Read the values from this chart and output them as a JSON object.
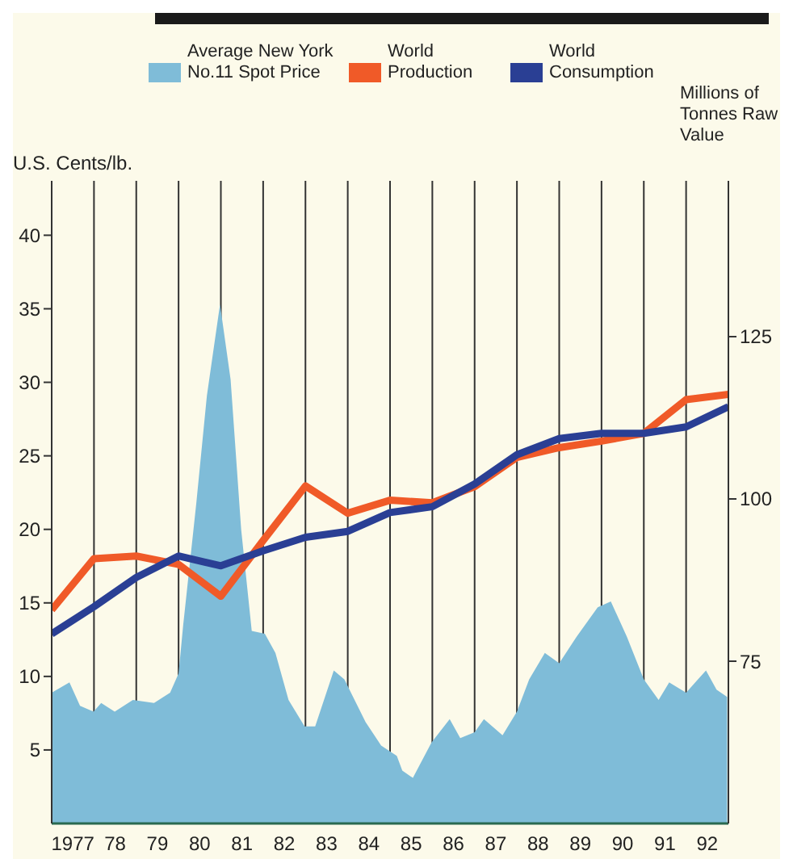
{
  "chart_data": {
    "type": "line",
    "ylabel": "U.S. Cents/lb.",
    "y2label": "Millions of Tonnes Raw Value",
    "xlim": [
      1976.5,
      1992.5
    ],
    "xticks": [
      {
        "value": 1976.5,
        "label": null
      },
      1977,
      {
        "value": 1977.5,
        "label": null
      },
      {
        "value": 1978,
        "label": "78"
      },
      {
        "value": 1978.5,
        "label": null
      },
      {
        "value": 1979,
        "label": "79"
      },
      {
        "value": 1979.5,
        "label": null
      },
      {
        "value": 1980,
        "label": "80"
      },
      {
        "value": 1980.5,
        "label": null
      },
      {
        "value": 1981,
        "label": "81"
      },
      {
        "value": 1981.5,
        "label": null
      },
      {
        "value": 1982,
        "label": "82"
      },
      {
        "value": 1982.5,
        "label": null
      },
      {
        "value": 1983,
        "label": "83"
      },
      {
        "value": 1983.5,
        "label": null
      },
      {
        "value": 1984,
        "label": "84"
      },
      {
        "value": 1984.5,
        "label": null
      },
      {
        "value": 1985,
        "label": "85"
      },
      {
        "value": 1985.5,
        "label": null
      },
      {
        "value": 1986,
        "label": "86"
      },
      {
        "value": 1986.5,
        "label": null
      },
      {
        "value": 1987,
        "label": "87"
      },
      {
        "value": 1987.5,
        "label": null
      },
      {
        "value": 1988,
        "label": "88"
      },
      {
        "value": 1988.5,
        "label": null
      },
      {
        "value": 1989,
        "label": "89"
      },
      {
        "value": 1989.5,
        "label": null
      },
      {
        "value": 1990,
        "label": "90"
      },
      {
        "value": 1990.5,
        "label": null
      },
      {
        "value": 1991,
        "label": "91"
      },
      {
        "value": 1991.5,
        "label": null
      },
      {
        "value": 1992,
        "label": "92"
      },
      {
        "value": 1992.5,
        "label": null
      }
    ],
    "ylim": [
      0,
      43.7
    ],
    "yticks": [
      5,
      10,
      15,
      20,
      25,
      30,
      35,
      40
    ],
    "y2lim": [
      50,
      149
    ],
    "y2ticks": [
      75,
      100,
      125
    ],
    "grid": "x",
    "legend": "top",
    "marker": "none",
    "line_style": "solid",
    "series": [
      {
        "name": "Average New York No.11 Spot Price",
        "type": "area",
        "color": "#7fbcd8",
        "x": [
          1976.5,
          1976.92,
          1977.17,
          1977.49,
          1977.67,
          1977.99,
          1978.42,
          1978.92,
          1979.3,
          1979.5,
          1979.61,
          1979.92,
          1980.17,
          1980.48,
          1980.73,
          1980.98,
          1981.23,
          1981.54,
          1981.79,
          1982.1,
          1982.48,
          1982.73,
          1983.17,
          1983.42,
          1983.92,
          1984.29,
          1984.66,
          1984.79,
          1985.04,
          1985.48,
          1985.91,
          1986.16,
          1986.5,
          1986.72,
          1987.16,
          1987.5,
          1987.79,
          1988.16,
          1988.5,
          1988.91,
          1989.41,
          1989.72,
          1990.1,
          1990.5,
          1990.85,
          1991.1,
          1991.5,
          1991.78,
          1991.97,
          1992.22,
          1992.47
        ],
        "values": [
          8.9,
          9.6,
          8.0,
          7.6,
          8.2,
          7.6,
          8.4,
          8.2,
          8.9,
          10.2,
          13.5,
          21.8,
          29.1,
          35.3,
          30.2,
          20.0,
          13.1,
          12.9,
          11.6,
          8.4,
          6.6,
          6.6,
          10.4,
          9.8,
          6.9,
          5.3,
          4.6,
          3.6,
          3.1,
          5.5,
          7.1,
          5.8,
          6.2,
          7.1,
          6.0,
          7.6,
          9.8,
          11.6,
          10.9,
          12.7,
          14.7,
          15.1,
          12.7,
          9.8,
          8.4,
          9.6,
          8.9,
          9.8,
          10.4,
          9.1,
          8.6
        ]
      },
      {
        "name": "World Production",
        "axis": "y2",
        "color": "#f05a28",
        "x": [
          1976.5,
          1977.5,
          1978.5,
          1979.5,
          1980.5,
          1981.5,
          1982.5,
          1983.5,
          1984.5,
          1985.5,
          1986.5,
          1987.5,
          1988.5,
          1989.5,
          1990.5,
          1991.5,
          1992.5
        ],
        "values": [
          82.9,
          90.8,
          91.2,
          89.9,
          85.0,
          93.6,
          102.0,
          97.8,
          99.8,
          99.4,
          101.9,
          106.4,
          107.9,
          108.9,
          110.1,
          115.3,
          116.1
        ]
      },
      {
        "name": "World Consumption",
        "axis": "y2",
        "color": "#2a3f94",
        "x": [
          1976.5,
          1977.5,
          1978.5,
          1979.5,
          1980.5,
          1981.5,
          1982.5,
          1983.5,
          1984.5,
          1985.5,
          1986.5,
          1987.5,
          1988.5,
          1989.5,
          1990.5,
          1991.5,
          1992.5
        ],
        "values": [
          79.2,
          83.4,
          87.9,
          91.2,
          89.7,
          92.0,
          94.1,
          95.0,
          97.9,
          98.8,
          102.3,
          106.8,
          109.3,
          110.1,
          110.1,
          111.1,
          114.2
        ]
      }
    ]
  }
}
